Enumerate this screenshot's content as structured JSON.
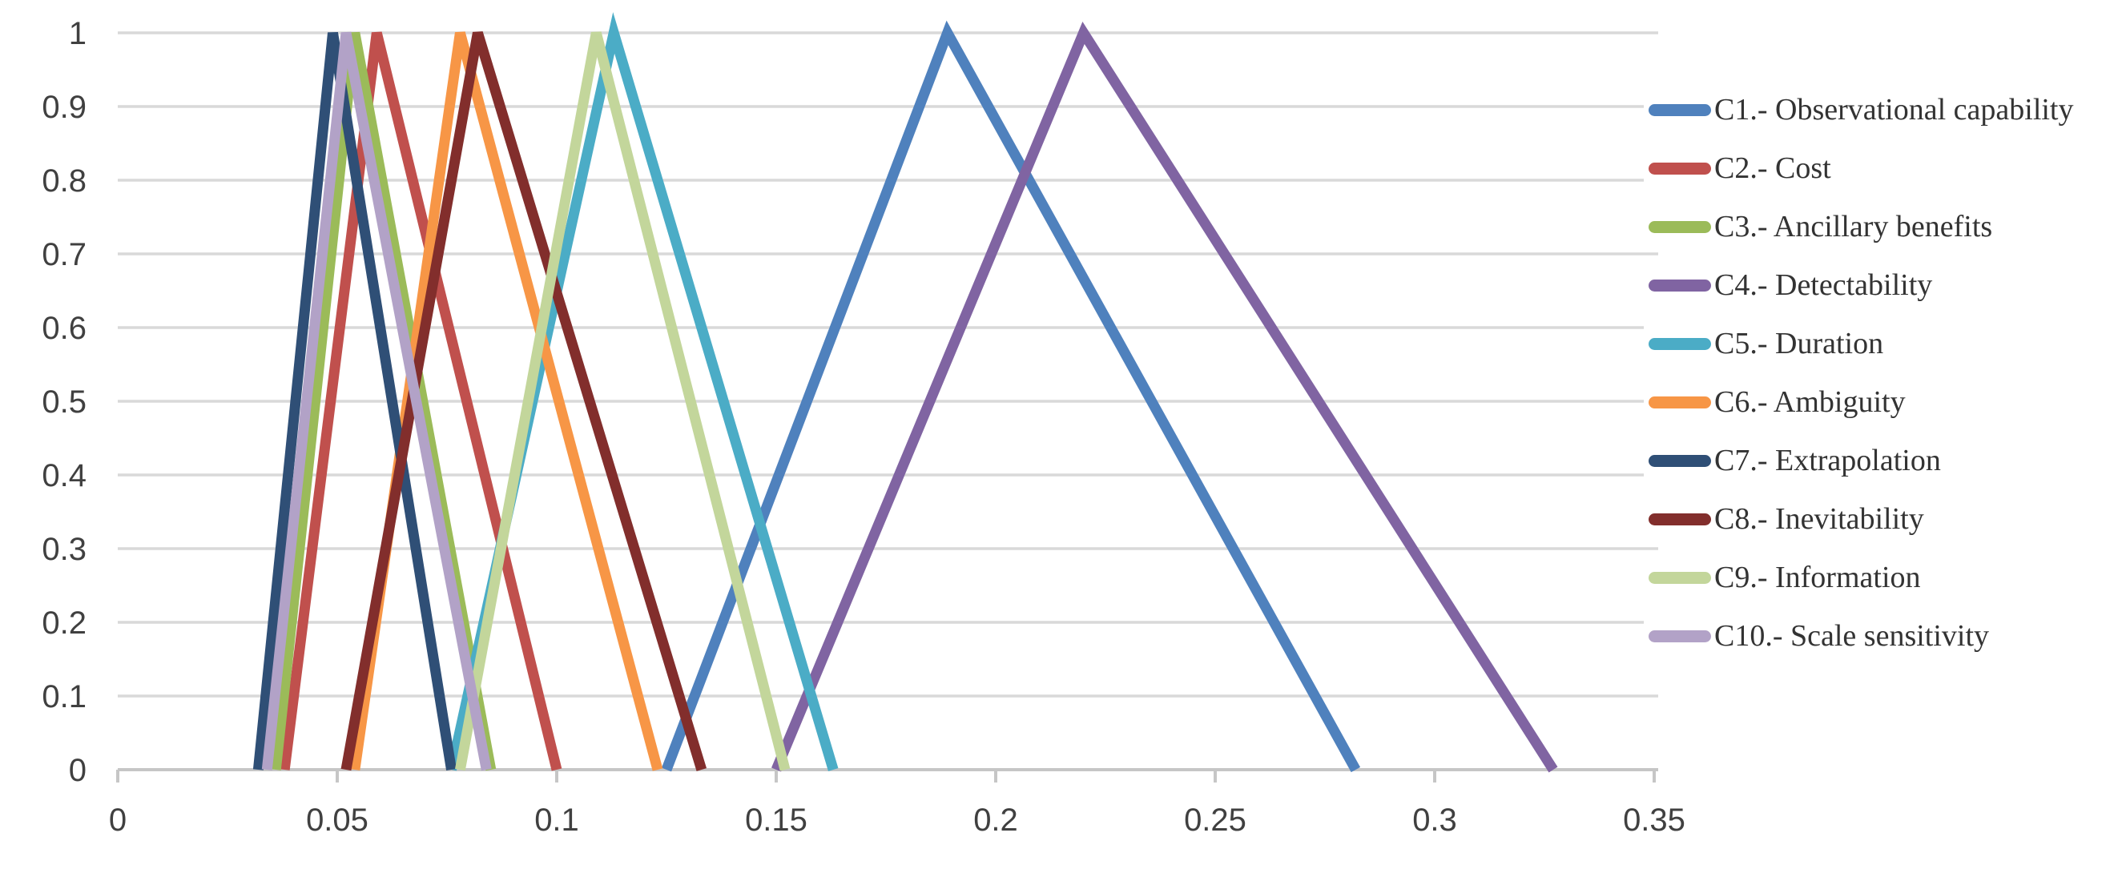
{
  "chart_data": {
    "type": "line",
    "subtype": "triangular-fuzzy-membership-functions",
    "title": "",
    "xlabel": "",
    "ylabel": "",
    "xlim": [
      0,
      0.35
    ],
    "ylim": [
      0,
      1
    ],
    "grid": "horizontal",
    "legend_position": "right",
    "x_ticks": {
      "values": [
        0,
        0.05,
        0.1,
        0.15,
        0.2,
        0.25,
        0.3,
        0.35
      ],
      "labels": [
        "0",
        "0.05",
        "0.1",
        "0.15",
        "0.2",
        "0.25",
        "0.3",
        "0.35"
      ]
    },
    "y_ticks": {
      "values": [
        0,
        0.1,
        0.2,
        0.3,
        0.4,
        0.5,
        0.6,
        0.7,
        0.8,
        0.9,
        1
      ],
      "labels": [
        "0",
        "0.1",
        "0.2",
        "0.3",
        "0.4",
        "0.5",
        "0.6",
        "0.7",
        "0.8",
        "0.9",
        "1"
      ]
    },
    "series": [
      {
        "name": "C1.- Observational capability",
        "color": "#4F81BD",
        "points": [
          [
            0.125,
            0
          ],
          [
            0.189,
            1
          ],
          [
            0.282,
            0
          ]
        ]
      },
      {
        "name": "C2.- Cost",
        "color": "#C0504D",
        "points": [
          [
            0.038,
            0
          ],
          [
            0.059,
            1
          ],
          [
            0.1,
            0
          ]
        ]
      },
      {
        "name": "C3.- Ancillary benefits",
        "color": "#9BBB59",
        "points": [
          [
            0.036,
            0
          ],
          [
            0.054,
            1
          ],
          [
            0.085,
            0
          ]
        ]
      },
      {
        "name": "C4.- Detectability",
        "color": "#8064A2",
        "points": [
          [
            0.15,
            0
          ],
          [
            0.22,
            1
          ],
          [
            0.327,
            0
          ]
        ]
      },
      {
        "name": "C5.- Duration",
        "color": "#4BACC6",
        "points": [
          [
            0.076,
            0
          ],
          [
            0.113,
            1
          ],
          [
            0.163,
            0
          ]
        ]
      },
      {
        "name": "C6.- Ambiguity",
        "color": "#F79646",
        "points": [
          [
            0.054,
            0
          ],
          [
            0.078,
            1
          ],
          [
            0.123,
            0
          ]
        ]
      },
      {
        "name": "C7.- Extrapolation",
        "color": "#2F4F76",
        "points": [
          [
            0.032,
            0
          ],
          [
            0.049,
            1
          ],
          [
            0.076,
            0
          ]
        ]
      },
      {
        "name": "C8.- Inevitability",
        "color": "#822E2C",
        "points": [
          [
            0.052,
            0
          ],
          [
            0.082,
            1
          ],
          [
            0.133,
            0
          ]
        ]
      },
      {
        "name": "C9.- Information",
        "color": "#C3D69B",
        "points": [
          [
            0.078,
            0
          ],
          [
            0.109,
            1
          ],
          [
            0.152,
            0
          ]
        ]
      },
      {
        "name": "C10.- Scale sensitivity",
        "color": "#B2A2C7",
        "points": [
          [
            0.034,
            0
          ],
          [
            0.052,
            1
          ],
          [
            0.084,
            0
          ]
        ]
      }
    ]
  },
  "styles": {
    "background": "#FFFFFF",
    "gridline_color": "#D9D9D9",
    "axis_color": "#C6C6C6",
    "tick_label_color": "#404040",
    "legend_text_color": "#333333",
    "series_stroke_width": 13
  }
}
